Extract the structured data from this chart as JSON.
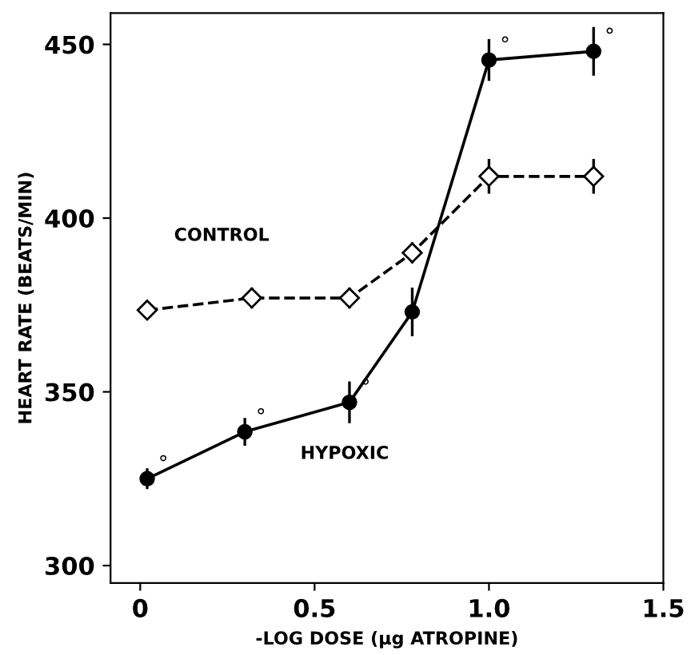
{
  "chart_data": {
    "type": "line",
    "xlabel": "-LOG DOSE (µg ATROPINE)",
    "ylabel": "HEART RATE (BEATS/MIN)",
    "xlim": [
      -0.085,
      1.5
    ],
    "ylim": [
      295,
      459
    ],
    "xticks": [
      {
        "value": 0,
        "label": "0"
      },
      0.5,
      {
        "value": 1,
        "label": "1.0"
      },
      1.5
    ],
    "yticks": [
      300,
      350,
      400,
      450
    ],
    "grid": false,
    "legend": false,
    "series": [
      {
        "name": "CONTROL",
        "color": "#000000",
        "marker": "diamond",
        "line_style": "dashed",
        "x": [
          0.02,
          0.32,
          0.6,
          0.78,
          1.0,
          1.3
        ],
        "values": [
          373.5,
          377,
          377,
          390,
          412,
          412
        ],
        "errors": [
          2,
          3,
          3,
          3,
          5,
          5
        ]
      },
      {
        "name": "HYPOXIC",
        "color": "#000000",
        "marker": "circle",
        "line_style": "solid",
        "x": [
          0.02,
          0.3,
          0.6,
          0.78,
          1.0,
          1.3
        ],
        "values": [
          325,
          338.5,
          347,
          373,
          445.5,
          448
        ],
        "errors": [
          3,
          4,
          6,
          7,
          6,
          7
        ]
      }
    ],
    "annotations": [
      {
        "text": "°",
        "x": 0.02,
        "y": 325
      },
      {
        "text": "°",
        "x": 0.3,
        "y": 338.5
      },
      {
        "text": "°",
        "x": 0.6,
        "y": 347
      },
      {
        "text": "°",
        "x": 1.0,
        "y": 445.5
      },
      {
        "text": "°",
        "x": 1.3,
        "y": 448
      }
    ]
  }
}
